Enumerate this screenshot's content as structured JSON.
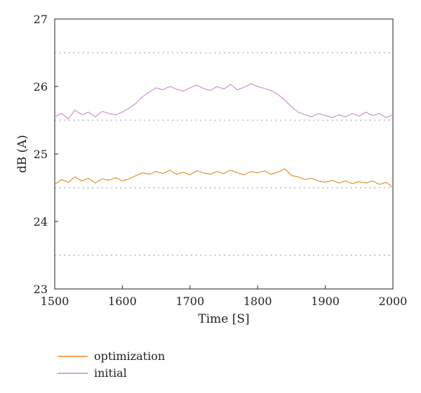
{
  "chart_data": {
    "type": "line",
    "title": "",
    "xlabel": "Time [S]",
    "ylabel": "dB (A)",
    "xlim": [
      1500,
      2000
    ],
    "ylim": [
      23,
      27
    ],
    "x_ticks": [
      1500,
      1600,
      1700,
      1800,
      1900,
      2000
    ],
    "y_ticks": [
      23,
      24,
      25,
      26,
      27
    ],
    "grid": "horizontal dotted at 0.5 steps",
    "legend_position": "bottom-left",
    "x": [
      1500,
      1510,
      1520,
      1530,
      1540,
      1550,
      1560,
      1570,
      1580,
      1590,
      1600,
      1610,
      1620,
      1630,
      1640,
      1650,
      1660,
      1670,
      1680,
      1690,
      1700,
      1710,
      1720,
      1730,
      1740,
      1750,
      1760,
      1770,
      1780,
      1790,
      1800,
      1810,
      1820,
      1830,
      1840,
      1850,
      1860,
      1870,
      1880,
      1890,
      1900,
      1910,
      1920,
      1930,
      1940,
      1950,
      1960,
      1970,
      1980,
      1990,
      2000
    ],
    "series": [
      {
        "name": "optimization",
        "color": "#E08A1E",
        "values": [
          24.55,
          24.62,
          24.58,
          24.66,
          24.6,
          24.64,
          24.57,
          24.63,
          24.61,
          24.65,
          24.6,
          24.63,
          24.68,
          24.72,
          24.7,
          24.74,
          24.71,
          24.76,
          24.7,
          24.73,
          24.69,
          24.75,
          24.72,
          24.7,
          24.74,
          24.71,
          24.76,
          24.72,
          24.69,
          24.74,
          24.72,
          24.75,
          24.7,
          24.73,
          24.78,
          24.68,
          24.66,
          24.62,
          24.64,
          24.6,
          24.58,
          24.61,
          24.57,
          24.6,
          24.56,
          24.59,
          24.57,
          24.6,
          24.55,
          24.58,
          24.5
        ]
      },
      {
        "name": "initial",
        "color": "#CC88CC",
        "values": [
          25.55,
          25.6,
          25.52,
          25.65,
          25.58,
          25.62,
          25.55,
          25.63,
          25.6,
          25.58,
          25.62,
          25.68,
          25.75,
          25.85,
          25.92,
          25.98,
          25.95,
          26.0,
          25.96,
          25.93,
          25.98,
          26.02,
          25.97,
          25.94,
          26.0,
          25.96,
          26.03,
          25.95,
          25.99,
          26.04,
          26.0,
          25.97,
          25.94,
          25.88,
          25.8,
          25.7,
          25.62,
          25.58,
          25.55,
          25.6,
          25.57,
          25.54,
          25.58,
          25.55,
          25.6,
          25.56,
          25.62,
          25.57,
          25.6,
          25.54,
          25.58
        ]
      }
    ]
  },
  "colors": {
    "optimization": "#E08A1E",
    "initial": "#CC88CC",
    "axis": "#222222",
    "grid": "#777777"
  }
}
